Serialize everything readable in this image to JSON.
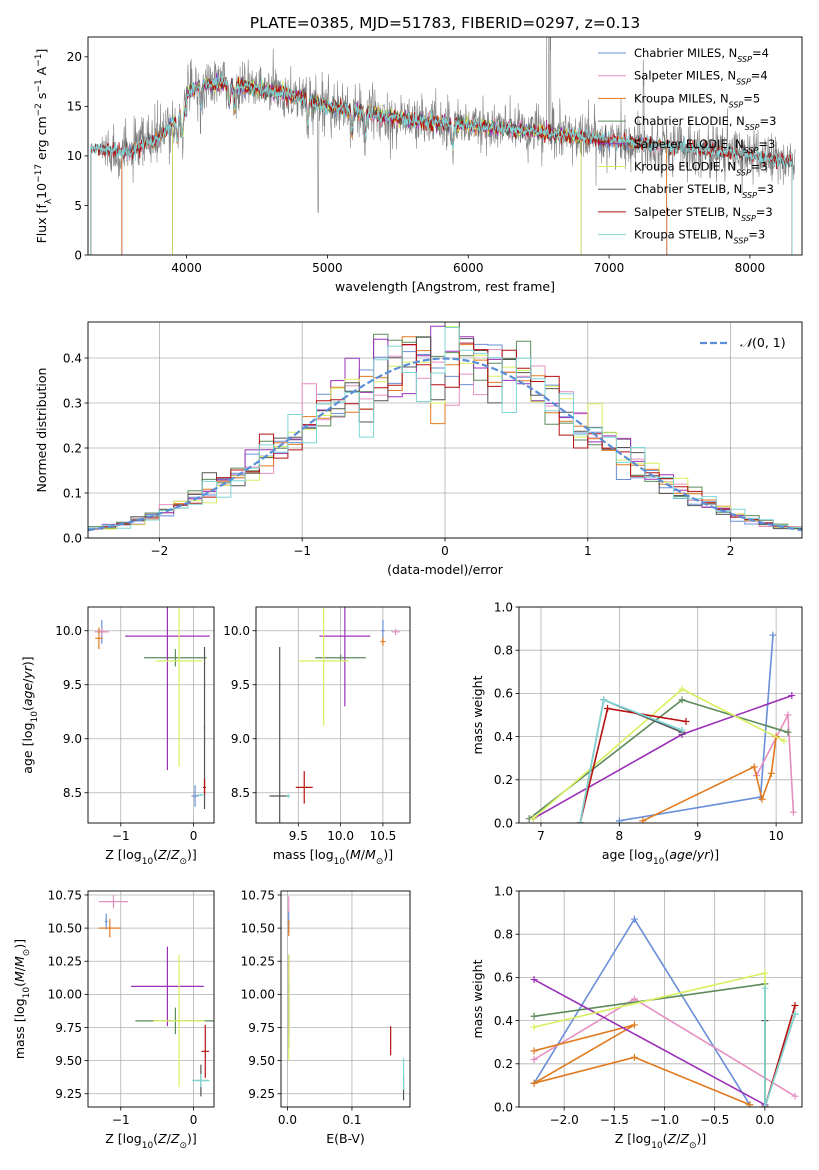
{
  "figure_title": "PLATE=0385, MJD=51783, FIBERID=0297, z=0.13",
  "colors": {
    "Chabrier MILES": "#6a8fd9",
    "Salpeter MILES": "#e58fc0",
    "Kroupa MILES": "#e07a1f",
    "Chabrier ELODIE": "#5b8a5b",
    "Salpeter ELODIE": "#9b30b8",
    "Kroupa ELODIE": "#d8f060",
    "Chabrier STELIB": "#555555",
    "Salpeter STELIB": "#b51010",
    "Kroupa STELIB": "#7fd6d6",
    "data": "#808080",
    "gauss": "#5b8ed6"
  },
  "chart_data": [
    {
      "id": "spectrum",
      "type": "line",
      "xlabel": "wavelength [Angstrom, rest frame]",
      "xlim": [
        3300,
        8370
      ],
      "ylim": [
        0,
        22
      ],
      "xticks": [
        "4000",
        "5000",
        "6000",
        "7000",
        "8000"
      ],
      "yticks": [
        "0",
        "5",
        "10",
        "15",
        "20"
      ],
      "legend_position": "top-right",
      "legend": [
        {
          "name": "Chabrier MILES",
          "nssp": "4"
        },
        {
          "name": "Salpeter MILES",
          "nssp": "4"
        },
        {
          "name": "Kroupa MILES",
          "nssp": "5"
        },
        {
          "name": "Chabrier ELODIE",
          "nssp": "3"
        },
        {
          "name": "Salpeter ELODIE",
          "nssp": "3"
        },
        {
          "name": "Kroupa ELODIE",
          "nssp": "3"
        },
        {
          "name": "Chabrier STELIB",
          "nssp": "3"
        },
        {
          "name": "Salpeter STELIB",
          "nssp": "3"
        },
        {
          "name": "Kroupa STELIB",
          "nssp": "3"
        }
      ],
      "continuum": [
        [
          3400,
          12.2
        ],
        [
          3600,
          11.8
        ],
        [
          3700,
          12.8
        ],
        [
          3800,
          13.2
        ],
        [
          3900,
          14.8
        ],
        [
          4000,
          16.2
        ],
        [
          4100,
          17.2
        ],
        [
          4300,
          17.3
        ],
        [
          4500,
          16.8
        ],
        [
          4700,
          16.3
        ],
        [
          5000,
          15.0
        ],
        [
          5300,
          14.3
        ],
        [
          5600,
          13.6
        ],
        [
          6000,
          13.1
        ],
        [
          6500,
          12.4
        ],
        [
          7000,
          11.6
        ],
        [
          7500,
          10.9
        ],
        [
          8000,
          10.1
        ],
        [
          8300,
          9.3
        ]
      ],
      "model_ranges": {
        "MILES": [
          3540,
          7410
        ],
        "ELODIE": [
          3900,
          6800
        ],
        "STELIB": [
          3320,
          8300
        ]
      }
    },
    {
      "id": "residuals",
      "type": "histogram",
      "xlabel": "(data-model)/error",
      "ylabel": "Normed distribution",
      "xlim": [
        -2.5,
        2.5
      ],
      "ylim": [
        0,
        0.48
      ],
      "xticks": [
        "−2",
        "−1",
        "0",
        "1",
        "2"
      ],
      "yticks": [
        "0.0",
        "0.1",
        "0.2",
        "0.3",
        "0.4"
      ],
      "bin_width": 0.1,
      "legend_position": "top-right",
      "reference_curve": "normal(0, 1)"
    },
    {
      "id": "age_vs_Z",
      "type": "scatter",
      "xlabel": "Z [log10(Z/Z⊙)]",
      "ylabel": "age [log10(age/yr)]",
      "xlim": [
        -1.45,
        0.28
      ],
      "ylim": [
        8.22,
        10.22
      ],
      "xticks": [
        -1,
        0
      ],
      "yticks": [
        8.5,
        9.0,
        9.5,
        10.0
      ],
      "points": [
        {
          "model": "Chabrier MILES",
          "x": -1.26,
          "y": 9.99,
          "xerr": 0.05,
          "yerr": 0.11
        },
        {
          "model": "Chabrier MILES",
          "x": 0.02,
          "y": 8.47,
          "xerr": 0.05,
          "yerr": 0.1
        },
        {
          "model": "Salpeter MILES",
          "x": -1.26,
          "y": 9.99,
          "xerr": 0.1,
          "yerr": 0.04
        },
        {
          "model": "Kroupa MILES",
          "x": -1.3,
          "y": 9.93,
          "xerr": 0.05,
          "yerr": 0.1
        },
        {
          "model": "Chabrier ELODIE",
          "x": -0.25,
          "y": 9.75,
          "xerr": 0.43,
          "yerr": 0.08
        },
        {
          "model": "Salpeter ELODIE",
          "x": -0.36,
          "y": 9.95,
          "xerr": 0.58,
          "yerr": 1.24
        },
        {
          "model": "Kroupa ELODIE",
          "x": -0.2,
          "y": 9.72,
          "xerr": 0.32,
          "yerr": 0.98
        },
        {
          "model": "Chabrier STELIB",
          "x": 0.15,
          "y": 9.1,
          "xerr": 0.01,
          "yerr": 0.75
        },
        {
          "model": "Salpeter STELIB",
          "x": 0.15,
          "y": 8.55,
          "xerr": 0.02,
          "yerr": 0.08
        },
        {
          "model": "Kroupa STELIB",
          "x": 0.1,
          "y": 8.48,
          "xerr": 0.05,
          "yerr": 0.01
        }
      ]
    },
    {
      "id": "age_vs_mass",
      "type": "scatter",
      "xlabel": "mass [log10(M/M⊙)]",
      "xlim": [
        9.0,
        10.82
      ],
      "ylim": [
        8.22,
        10.22
      ],
      "xticks": [
        9.5,
        10.0,
        10.5
      ],
      "yticks": [
        8.5,
        9.0,
        9.5,
        10.0
      ],
      "points": [
        {
          "model": "Chabrier MILES",
          "x": 10.5,
          "y": 10.0,
          "xerr": 0.02,
          "yerr": 0.1
        },
        {
          "model": "Salpeter MILES",
          "x": 10.65,
          "y": 9.99,
          "xerr": 0.05,
          "yerr": 0.03
        },
        {
          "model": "Kroupa MILES",
          "x": 10.5,
          "y": 9.9,
          "xerr": 0.03,
          "yerr": 0.04
        },
        {
          "model": "Chabrier ELODIE",
          "x": 10.0,
          "y": 9.75,
          "xerr": 0.3,
          "yerr": 0.03
        },
        {
          "model": "Salpeter ELODIE",
          "x": 10.05,
          "y": 9.95,
          "xerr": 0.3,
          "yerr": 0.65
        },
        {
          "model": "Kroupa ELODIE",
          "x": 9.8,
          "y": 9.72,
          "xerr": 0.3,
          "yerr": 0.6
        },
        {
          "model": "Chabrier STELIB",
          "x": 9.28,
          "y": 8.47,
          "xerr": 0.12,
          "yerr": 1.38
        },
        {
          "model": "Salpeter STELIB",
          "x": 9.57,
          "y": 8.55,
          "xerr": 0.1,
          "yerr": 0.15
        },
        {
          "model": "Kroupa STELIB",
          "x": 9.38,
          "y": 8.47,
          "xerr": 0.02,
          "yerr": 0.02
        }
      ]
    },
    {
      "id": "weight_vs_age",
      "type": "line",
      "xlabel": "age [log10(age/yr)]",
      "ylabel": "mass weight",
      "xlim": [
        6.72,
        10.33
      ],
      "ylim": [
        0.0,
        1.0
      ],
      "xticks": [
        7,
        8,
        9,
        10
      ],
      "yticks": [
        0.0,
        0.2,
        0.4,
        0.6,
        0.8,
        1.0
      ],
      "series": [
        {
          "model": "Chabrier MILES",
          "x": [
            8.0,
            9.8,
            9.96
          ],
          "y": [
            0.01,
            0.12,
            0.87
          ]
        },
        {
          "model": "Salpeter MILES",
          "x": [
            9.75,
            10.15,
            10.22
          ],
          "y": [
            0.22,
            0.5,
            0.05
          ]
        },
        {
          "model": "Kroupa MILES",
          "x": [
            8.3,
            9.72,
            9.82,
            9.94,
            10.0
          ],
          "y": [
            0.01,
            0.26,
            0.11,
            0.23,
            0.4
          ]
        },
        {
          "model": "Chabrier ELODIE",
          "x": [
            6.85,
            8.8,
            10.15
          ],
          "y": [
            0.02,
            0.57,
            0.42
          ]
        },
        {
          "model": "Salpeter ELODIE",
          "x": [
            6.9,
            8.8,
            10.2
          ],
          "y": [
            0.02,
            0.41,
            0.59
          ]
        },
        {
          "model": "Kroupa ELODIE",
          "x": [
            6.9,
            8.8,
            10.1
          ],
          "y": [
            0.02,
            0.62,
            0.38
          ]
        },
        {
          "model": "Chabrier STELIB",
          "x": [
            7.5,
            7.8,
            8.8
          ],
          "y": [
            0.0,
            0.57,
            0.42
          ]
        },
        {
          "model": "Salpeter STELIB",
          "x": [
            7.5,
            7.85,
            8.85
          ],
          "y": [
            0.0,
            0.53,
            0.47
          ]
        },
        {
          "model": "Kroupa STELIB",
          "x": [
            7.5,
            7.8,
            8.8
          ],
          "y": [
            0.0,
            0.57,
            0.43
          ]
        }
      ]
    },
    {
      "id": "mass_vs_Z",
      "type": "scatter",
      "xlabel": "Z [log10(Z/Z⊙)]",
      "ylabel": "mass [log10(M/M⊙)]",
      "xlim": [
        -1.45,
        0.28
      ],
      "ylim": [
        9.15,
        10.78
      ],
      "xticks": [
        -1,
        0
      ],
      "yticks": [
        9.25,
        9.5,
        9.75,
        10.0,
        10.25,
        10.5,
        10.75
      ],
      "points": [
        {
          "model": "Chabrier MILES",
          "x": -1.2,
          "y": 10.55,
          "xerr": 0.02,
          "yerr": 0.06
        },
        {
          "model": "Salpeter MILES",
          "x": -1.1,
          "y": 10.7,
          "xerr": 0.2,
          "yerr": 0.05
        },
        {
          "model": "Kroupa MILES",
          "x": -1.15,
          "y": 10.5,
          "xerr": 0.15,
          "yerr": 0.07
        },
        {
          "model": "Chabrier ELODIE",
          "x": -0.25,
          "y": 9.8,
          "xerr": 0.55,
          "yerr": 0.1
        },
        {
          "model": "Salpeter ELODIE",
          "x": -0.36,
          "y": 10.06,
          "xerr": 0.5,
          "yerr": 0.3
        },
        {
          "model": "Kroupa ELODIE",
          "x": -0.2,
          "y": 9.8,
          "xerr": 0.35,
          "yerr": 0.5
        },
        {
          "model": "Chabrier STELIB",
          "x": 0.1,
          "y": 9.35,
          "xerr": 0.1,
          "yerr": 0.12
        },
        {
          "model": "Salpeter STELIB",
          "x": 0.16,
          "y": 9.57,
          "xerr": 0.05,
          "yerr": 0.2
        },
        {
          "model": "Kroupa STELIB",
          "x": 0.1,
          "y": 9.35,
          "xerr": 0.12,
          "yerr": 0.05
        }
      ]
    },
    {
      "id": "mass_vs_ebv",
      "type": "scatter",
      "xlabel": "E(B-V)",
      "xlim": [
        -0.01,
        0.19
      ],
      "ylim": [
        9.15,
        10.78
      ],
      "xticks": [
        0.0,
        0.1
      ],
      "yticks": [
        9.25,
        9.5,
        9.75,
        10.0,
        10.25,
        10.5,
        10.75
      ],
      "points": [
        {
          "model": "Chabrier MILES",
          "x": 0.002,
          "y": 10.55,
          "yerr": 0.08
        },
        {
          "model": "Salpeter MILES",
          "x": 0.002,
          "y": 10.68,
          "yerr": 0.06
        },
        {
          "model": "Kroupa MILES",
          "x": 0.002,
          "y": 10.5,
          "yerr": 0.06
        },
        {
          "model": "Chabrier ELODIE",
          "x": 0.002,
          "y": 9.85,
          "yerr": 0.25
        },
        {
          "model": "Salpeter ELODIE",
          "x": 0.002,
          "y": 10.0,
          "yerr": 0.3
        },
        {
          "model": "Kroupa ELODIE",
          "x": 0.002,
          "y": 9.9,
          "yerr": 0.4
        },
        {
          "model": "Chabrier STELIB",
          "x": 0.18,
          "y": 9.3,
          "yerr": 0.1
        },
        {
          "model": "Salpeter STELIB",
          "x": 0.16,
          "y": 9.65,
          "yerr": 0.11
        },
        {
          "model": "Kroupa STELIB",
          "x": 0.18,
          "y": 9.4,
          "yerr": 0.12
        }
      ]
    },
    {
      "id": "weight_vs_Z",
      "type": "line",
      "xlabel": "Z [log10(Z/Z⊙)]",
      "ylabel": "mass weight",
      "xlim": [
        -2.45,
        0.37
      ],
      "ylim": [
        0.0,
        1.0
      ],
      "xticks": [
        -2.0,
        -1.5,
        -1.0,
        -0.5,
        0.0
      ],
      "yticks": [
        0.0,
        0.2,
        0.4,
        0.6,
        0.8,
        1.0
      ],
      "series": [
        {
          "model": "Chabrier MILES",
          "x": [
            -2.3,
            -1.3,
            -0.15
          ],
          "y": [
            0.11,
            0.87,
            0.01
          ]
        },
        {
          "model": "Salpeter MILES",
          "x": [
            -2.3,
            -1.3,
            0.3
          ],
          "y": [
            0.22,
            0.5,
            0.05
          ]
        },
        {
          "model": "Kroupa MILES",
          "x": [
            -2.3,
            -1.3,
            -2.3,
            -1.3,
            -0.15
          ],
          "y": [
            0.26,
            0.38,
            0.11,
            0.23,
            0.01
          ]
        },
        {
          "model": "Chabrier ELODIE",
          "x": [
            -2.3,
            0.0,
            0.0
          ],
          "y": [
            0.42,
            0.57,
            0.0
          ]
        },
        {
          "model": "Salpeter ELODIE",
          "x": [
            -2.3,
            0.0
          ],
          "y": [
            0.59,
            0.01
          ]
        },
        {
          "model": "Kroupa ELODIE",
          "x": [
            -2.3,
            0.0,
            0.0
          ],
          "y": [
            0.37,
            0.62,
            0.0
          ]
        },
        {
          "model": "Chabrier STELIB",
          "x": [
            0.0,
            0.0,
            0.3
          ],
          "y": [
            0.4,
            0.0,
            0.43
          ]
        },
        {
          "model": "Salpeter STELIB",
          "x": [
            0.0,
            0.0,
            0.3
          ],
          "y": [
            0.0,
            0.0,
            0.47
          ]
        },
        {
          "model": "Kroupa STELIB",
          "x": [
            0.0,
            0.0,
            0.3
          ],
          "y": [
            0.55,
            0.0,
            0.43
          ]
        }
      ]
    }
  ]
}
